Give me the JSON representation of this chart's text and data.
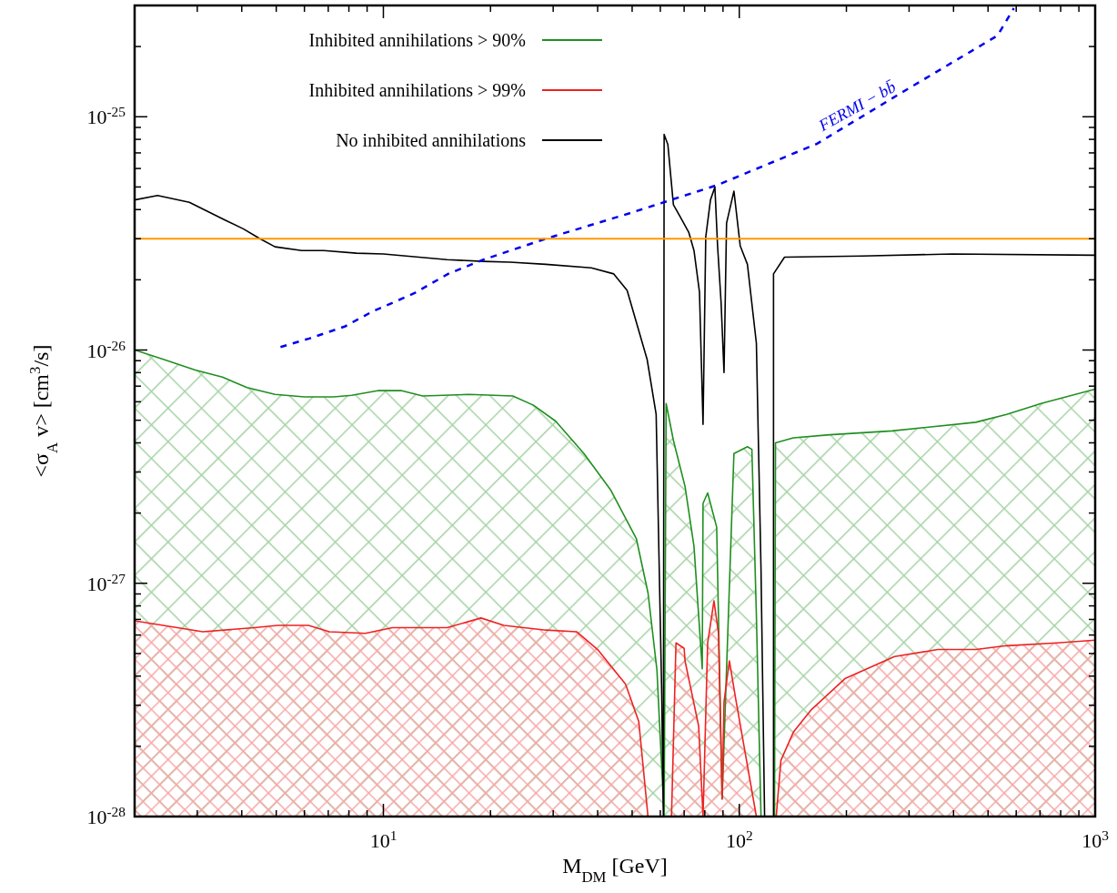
{
  "chart_data": {
    "type": "line",
    "xlabel": "M$_{DM}$ [GeV]",
    "ylabel": "<σ$_{A}$ v>  [cm$^{3}$/s]",
    "log": "xy",
    "legend": "top left",
    "grid": false,
    "xlim": [
      2,
      1000
    ],
    "ylim": [
      1e-28,
      3e-25
    ],
    "xticks": [
      {
        "value": 2,
        "label": null
      },
      {
        "value": 3,
        "label": null
      },
      {
        "value": 4,
        "label": null
      },
      {
        "value": 5,
        "label": null
      },
      {
        "value": 6,
        "label": null
      },
      {
        "value": 7,
        "label": null
      },
      {
        "value": 8,
        "label": null
      },
      {
        "value": 9,
        "label": null
      },
      {
        "value": 10,
        "label": "10$^{1}$"
      },
      {
        "value": 20,
        "label": null
      },
      {
        "value": 30,
        "label": null
      },
      {
        "value": 40,
        "label": null
      },
      {
        "value": 50,
        "label": null
      },
      {
        "value": 60,
        "label": null
      },
      {
        "value": 70,
        "label": null
      },
      {
        "value": 80,
        "label": null
      },
      {
        "value": 90,
        "label": null
      },
      {
        "value": 100,
        "label": "10$^{2}$"
      },
      {
        "value": 200,
        "label": null
      },
      {
        "value": 300,
        "label": null
      },
      {
        "value": 400,
        "label": null
      },
      {
        "value": 500,
        "label": null
      },
      {
        "value": 600,
        "label": null
      },
      {
        "value": 700,
        "label": null
      },
      {
        "value": 800,
        "label": null
      },
      {
        "value": 900,
        "label": null
      },
      {
        "value": 1000,
        "label": "10$^{3}$"
      }
    ],
    "yticks": [
      {
        "value": 1e-28,
        "label": "10$^{-28}$"
      },
      {
        "value": 2e-28,
        "label": null
      },
      {
        "value": 3e-28,
        "label": null
      },
      {
        "value": 4e-28,
        "label": null
      },
      {
        "value": 5e-28,
        "label": null
      },
      {
        "value": 6e-28,
        "label": null
      },
      {
        "value": 7e-28,
        "label": null
      },
      {
        "value": 8e-28,
        "label": null
      },
      {
        "value": 9e-28,
        "label": null
      },
      {
        "value": 1e-27,
        "label": "10$^{-27}$"
      },
      {
        "value": 2e-27,
        "label": null
      },
      {
        "value": 3e-27,
        "label": null
      },
      {
        "value": 4e-27,
        "label": null
      },
      {
        "value": 5e-27,
        "label": null
      },
      {
        "value": 6e-27,
        "label": null
      },
      {
        "value": 7e-27,
        "label": null
      },
      {
        "value": 8e-27,
        "label": null
      },
      {
        "value": 9e-27,
        "label": null
      },
      {
        "value": 1e-26,
        "label": "10$^{-26}$"
      },
      {
        "value": 2e-26,
        "label": null
      },
      {
        "value": 3e-26,
        "label": null
      },
      {
        "value": 4e-26,
        "label": null
      },
      {
        "value": 5e-26,
        "label": null
      },
      {
        "value": 6e-26,
        "label": null
      },
      {
        "value": 7e-26,
        "label": null
      },
      {
        "value": 8e-26,
        "label": null
      },
      {
        "value": 9e-26,
        "label": null
      },
      {
        "value": 1e-25,
        "label": "10$^{-25}$"
      },
      {
        "value": 2e-25,
        "label": null
      },
      {
        "value": 3e-25,
        "label": null
      }
    ],
    "series": [
      {
        "name": "Inhibited annihilations > 90%",
        "type": "area",
        "color": "#1f8f1f",
        "x": [
          2.0,
          2.42,
          2.96,
          3.53,
          4.14,
          4.96,
          6.0,
          7.25,
          8.15,
          9.7,
          11.2,
          12.9,
          17.4,
          23.1,
          26.4,
          30.5,
          36.6,
          43.6,
          51.4,
          55.4,
          58.7,
          61.5,
          62.3,
          65.3,
          70.4,
          74.6,
          78.7,
          79.1,
          81.5,
          86.4,
          89.5,
          96.6,
          105.4,
          108.5,
          111.7,
          115.1,
          125.6,
          126.4,
          141.9,
          179.4,
          268.5,
          462,
          564,
          705,
          1000
        ],
        "values": [
          1e-26,
          9.1e-27,
          8.2e-27,
          7.65e-27,
          6.9e-27,
          6.45e-27,
          6.3e-27,
          6.3e-27,
          6.4e-27,
          6.7e-27,
          6.7e-27,
          6.35e-27,
          6.45e-27,
          6.35e-27,
          5.8e-27,
          4.95e-27,
          3.6e-27,
          2.5e-27,
          1.55e-27,
          9.1e-28,
          4.25e-28,
          1e-28,
          5.9e-27,
          4.1e-27,
          2.6e-27,
          1.44e-27,
          4.3e-28,
          2.2e-27,
          2.44e-27,
          1.74e-27,
          1.19e-28,
          3.6e-27,
          3.85e-27,
          3.75e-27,
          7.3e-28,
          1e-28,
          1e-28,
          4e-27,
          4.2e-27,
          4.33e-27,
          4.5e-27,
          4.9e-27,
          5.3e-27,
          5.9e-27,
          6.8e-27
        ]
      },
      {
        "name": "Inhibited annihilations > 99%",
        "type": "area",
        "color": "#ee2222",
        "x": [
          2.0,
          3.11,
          4.34,
          5.05,
          6.16,
          7.05,
          8.9,
          10.6,
          15.1,
          18.8,
          21.8,
          28.6,
          34.9,
          40.0,
          47.9,
          52.2,
          55.4,
          64.5,
          66.4,
          70.0,
          70.4,
          76.9,
          79.1,
          81.5,
          84.9,
          87.4,
          89.5,
          90.6,
          93.8,
          97.7,
          111.7,
          127,
          130.9,
          141.9,
          158.7,
          198,
          273,
          361,
          462,
          564,
          782,
          1000
        ],
        "values": [
          6.9e-28,
          6.2e-28,
          6.45e-28,
          6.6e-28,
          6.6e-28,
          6.2e-28,
          6.1e-28,
          6.45e-28,
          6.45e-28,
          7.1e-28,
          6.6e-28,
          6.3e-28,
          6.2e-28,
          5.2e-28,
          3.7e-28,
          2.55e-28,
          1e-28,
          1e-28,
          5.55e-28,
          5.26e-28,
          4.65e-28,
          2.44e-28,
          1e-28,
          5.55e-28,
          8.4e-28,
          6.1e-28,
          1.19e-28,
          3.1e-28,
          4.65e-28,
          3.2e-28,
          1e-28,
          1e-28,
          1.74e-28,
          2.3e-28,
          2.85e-28,
          3.9e-28,
          4.85e-28,
          5.2e-28,
          5.2e-28,
          5.4e-28,
          5.55e-28,
          5.7e-28
        ]
      },
      {
        "name": "No inhibited annihilations",
        "color": "#000000",
        "x": [
          2.0,
          2.32,
          2.85,
          3.6,
          4.05,
          4.5,
          4.96,
          5.9,
          6.8,
          8.4,
          10,
          12.6,
          15.1,
          19.0,
          22.7,
          28.6,
          38.4,
          44.4,
          48.4,
          55.1,
          58.4,
          60.5,
          61.2,
          61.5,
          63.0,
          65.3,
          68.4,
          72.1,
          74.6,
          77.3,
          79.1,
          80.5,
          83.0,
          85.4,
          86.9,
          88.9,
          90.6,
          92.1,
          96.6,
          100.6,
          105.4,
          111.7,
          115.1,
          117.8,
          124.8,
          124.8,
          134,
          221,
          397,
          1000
        ],
        "values": [
          4.4e-26,
          4.6e-26,
          4.3e-26,
          3.6e-26,
          3.3e-26,
          3e-26,
          2.77e-26,
          2.67e-26,
          2.67e-26,
          2.6e-26,
          2.58e-26,
          2.5e-26,
          2.44e-26,
          2.4e-26,
          2.38e-26,
          2.33e-26,
          2.25e-26,
          2.12e-26,
          1.8e-26,
          9.1e-27,
          5.3e-27,
          3.6e-28,
          1e-28,
          8.4e-26,
          7.6e-26,
          4.2e-26,
          3.7e-26,
          3.2e-26,
          2.67e-26,
          1.77e-26,
          4.8e-27,
          3.05e-26,
          4.4e-26,
          5e-26,
          2.8e-26,
          1.6e-26,
          8e-27,
          3.5e-26,
          4.8e-26,
          2.8e-26,
          2.33e-26,
          1.07e-26,
          1.15e-27,
          1e-28,
          1e-28,
          2.12e-26,
          2.5e-26,
          2.53e-26,
          2.58e-26,
          2.55e-26
        ]
      },
      {
        "color": "#0000ee",
        "line_style": "dashed",
        "x": [
          5.14,
          6.19,
          7.78,
          9.3,
          12.2,
          15.2,
          19.1,
          28.6,
          49.0,
          86.9,
          165,
          296,
          532,
          591
        ],
        "values": [
          1.03e-26,
          1.12e-26,
          1.26e-26,
          1.46e-26,
          1.75e-26,
          2.12e-26,
          2.44e-26,
          3e-26,
          3.85e-26,
          5.1e-26,
          7.65e-26,
          1.31e-25,
          2.23e-25,
          2.92e-25
        ]
      }
    ],
    "ref_lines": [
      {
        "axis": "y",
        "value": 3e-26,
        "color": "#ff9900"
      }
    ],
    "annotations": [
      "FERMI − bb̄"
    ]
  }
}
